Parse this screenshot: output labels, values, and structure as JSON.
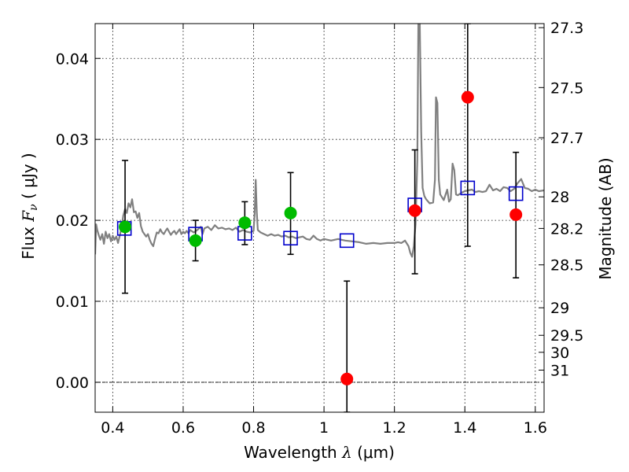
{
  "chart_data": {
    "type": "scatter",
    "xlabel": {
      "pre": "Wavelength  ",
      "sym": "λ",
      "post": " (μm)"
    },
    "ylabel": {
      "pre": "Flux  ",
      "sym": "F",
      "sub": "ν",
      "post": "  ( μJy )"
    },
    "y2label": "Magnitude (AB)",
    "xlim": [
      0.35,
      1.625
    ],
    "ylim": [
      -0.0037,
      0.0443
    ],
    "xticks": [
      {
        "v": 0.4,
        "label": "0.4"
      },
      {
        "v": 0.6,
        "label": "0.6"
      },
      {
        "v": 0.8,
        "label": "0.8"
      },
      {
        "v": 1.0,
        "label": "1"
      },
      {
        "v": 1.2,
        "label": "1.2"
      },
      {
        "v": 1.4,
        "label": "1.4"
      },
      {
        "v": 1.6,
        "label": "1.6"
      }
    ],
    "yticks": [
      {
        "v": 0.0,
        "label": "0.00"
      },
      {
        "v": 0.01,
        "label": "0.01"
      },
      {
        "v": 0.02,
        "label": "0.02"
      },
      {
        "v": 0.03,
        "label": "0.03"
      },
      {
        "v": 0.04,
        "label": "0.04"
      }
    ],
    "mag_ticks": [
      {
        "v": 0.0438,
        "label": "27.3"
      },
      {
        "v": 0.0364,
        "label": "27.5"
      },
      {
        "v": 0.0302,
        "label": "27.7"
      },
      {
        "v": 0.0229,
        "label": "28"
      },
      {
        "v": 0.019,
        "label": "28.2"
      },
      {
        "v": 0.0145,
        "label": "28.5"
      },
      {
        "v": 0.0092,
        "label": "29"
      },
      {
        "v": 0.0058,
        "label": "29.5"
      },
      {
        "v": 0.0037,
        "label": "30"
      },
      {
        "v": 0.0015,
        "label": "31"
      }
    ],
    "grid": true,
    "zero_line": 0.0,
    "series": [
      {
        "kind": "spectrum",
        "color": "#808080",
        "points": [
          [
            0.35,
            0.0158
          ],
          [
            0.353,
            0.0195
          ],
          [
            0.356,
            0.0188
          ],
          [
            0.36,
            0.0182
          ],
          [
            0.365,
            0.0176
          ],
          [
            0.37,
            0.0183
          ],
          [
            0.375,
            0.0171
          ],
          [
            0.38,
            0.0186
          ],
          [
            0.385,
            0.0178
          ],
          [
            0.39,
            0.0183
          ],
          [
            0.395,
            0.0174
          ],
          [
            0.4,
            0.0181
          ],
          [
            0.405,
            0.0176
          ],
          [
            0.41,
            0.018
          ],
          [
            0.415,
            0.0172
          ],
          [
            0.42,
            0.0181
          ],
          [
            0.425,
            0.0191
          ],
          [
            0.43,
            0.0206
          ],
          [
            0.435,
            0.0214
          ],
          [
            0.44,
            0.0209
          ],
          [
            0.445,
            0.0221
          ],
          [
            0.45,
            0.0216
          ],
          [
            0.455,
            0.0226
          ],
          [
            0.46,
            0.021
          ],
          [
            0.465,
            0.0211
          ],
          [
            0.47,
            0.0203
          ],
          [
            0.475,
            0.0209
          ],
          [
            0.48,
            0.0193
          ],
          [
            0.485,
            0.0186
          ],
          [
            0.49,
            0.0183
          ],
          [
            0.495,
            0.018
          ],
          [
            0.5,
            0.0183
          ],
          [
            0.505,
            0.0176
          ],
          [
            0.51,
            0.0171
          ],
          [
            0.515,
            0.0168
          ],
          [
            0.52,
            0.0177
          ],
          [
            0.525,
            0.0185
          ],
          [
            0.53,
            0.0184
          ],
          [
            0.535,
            0.0189
          ],
          [
            0.54,
            0.0185
          ],
          [
            0.545,
            0.0183
          ],
          [
            0.55,
            0.0187
          ],
          [
            0.555,
            0.019
          ],
          [
            0.56,
            0.0186
          ],
          [
            0.565,
            0.0182
          ],
          [
            0.57,
            0.0185
          ],
          [
            0.575,
            0.0187
          ],
          [
            0.58,
            0.0183
          ],
          [
            0.585,
            0.0186
          ],
          [
            0.59,
            0.0189
          ],
          [
            0.595,
            0.0183
          ],
          [
            0.6,
            0.0186
          ],
          [
            0.605,
            0.0184
          ],
          [
            0.61,
            0.0187
          ],
          [
            0.615,
            0.0184
          ],
          [
            0.62,
            0.0188
          ],
          [
            0.63,
            0.0185
          ],
          [
            0.64,
            0.0188
          ],
          [
            0.65,
            0.0192
          ],
          [
            0.655,
            0.0183
          ],
          [
            0.66,
            0.019
          ],
          [
            0.67,
            0.0192
          ],
          [
            0.68,
            0.0188
          ],
          [
            0.69,
            0.0194
          ],
          [
            0.7,
            0.019
          ],
          [
            0.71,
            0.0191
          ],
          [
            0.72,
            0.0189
          ],
          [
            0.73,
            0.019
          ],
          [
            0.74,
            0.0188
          ],
          [
            0.75,
            0.0191
          ],
          [
            0.76,
            0.0186
          ],
          [
            0.77,
            0.0188
          ],
          [
            0.78,
            0.0186
          ],
          [
            0.79,
            0.0185
          ],
          [
            0.8,
            0.0187
          ],
          [
            0.803,
            0.0208
          ],
          [
            0.806,
            0.025
          ],
          [
            0.809,
            0.021
          ],
          [
            0.812,
            0.0188
          ],
          [
            0.82,
            0.0185
          ],
          [
            0.83,
            0.0183
          ],
          [
            0.84,
            0.0181
          ],
          [
            0.85,
            0.0183
          ],
          [
            0.86,
            0.0181
          ],
          [
            0.87,
            0.0182
          ],
          [
            0.88,
            0.018
          ],
          [
            0.89,
            0.0181
          ],
          [
            0.9,
            0.0179
          ],
          [
            0.91,
            0.018
          ],
          [
            0.92,
            0.0178
          ],
          [
            0.93,
            0.0179
          ],
          [
            0.94,
            0.018
          ],
          [
            0.95,
            0.0177
          ],
          [
            0.96,
            0.0176
          ],
          [
            0.97,
            0.0181
          ],
          [
            0.98,
            0.0177
          ],
          [
            0.99,
            0.0175
          ],
          [
            1.0,
            0.0177
          ],
          [
            1.02,
            0.0175
          ],
          [
            1.04,
            0.0177
          ],
          [
            1.06,
            0.0175
          ],
          [
            1.08,
            0.0174
          ],
          [
            1.1,
            0.0173
          ],
          [
            1.12,
            0.0171
          ],
          [
            1.14,
            0.0172
          ],
          [
            1.16,
            0.0171
          ],
          [
            1.18,
            0.0172
          ],
          [
            1.2,
            0.0172
          ],
          [
            1.21,
            0.0173
          ],
          [
            1.22,
            0.0172
          ],
          [
            1.23,
            0.0175
          ],
          [
            1.24,
            0.0168
          ],
          [
            1.245,
            0.016
          ],
          [
            1.25,
            0.0155
          ],
          [
            1.255,
            0.0168
          ],
          [
            1.26,
            0.0195
          ],
          [
            1.265,
            0.0275
          ],
          [
            1.268,
            0.0443
          ],
          [
            1.272,
            0.0443
          ],
          [
            1.276,
            0.031
          ],
          [
            1.28,
            0.024
          ],
          [
            1.285,
            0.023
          ],
          [
            1.29,
            0.0226
          ],
          [
            1.3,
            0.0221
          ],
          [
            1.31,
            0.0222
          ],
          [
            1.315,
            0.025
          ],
          [
            1.318,
            0.0352
          ],
          [
            1.322,
            0.0345
          ],
          [
            1.326,
            0.025
          ],
          [
            1.33,
            0.0232
          ],
          [
            1.34,
            0.0225
          ],
          [
            1.35,
            0.0238
          ],
          [
            1.355,
            0.0223
          ],
          [
            1.36,
            0.0226
          ],
          [
            1.365,
            0.027
          ],
          [
            1.37,
            0.0262
          ],
          [
            1.375,
            0.0232
          ],
          [
            1.38,
            0.0231
          ],
          [
            1.39,
            0.0234
          ],
          [
            1.4,
            0.0236
          ],
          [
            1.41,
            0.0237
          ],
          [
            1.42,
            0.0238
          ],
          [
            1.43,
            0.0235
          ],
          [
            1.44,
            0.0236
          ],
          [
            1.45,
            0.0235
          ],
          [
            1.46,
            0.0236
          ],
          [
            1.47,
            0.0244
          ],
          [
            1.48,
            0.0237
          ],
          [
            1.49,
            0.0239
          ],
          [
            1.5,
            0.0236
          ],
          [
            1.51,
            0.0241
          ],
          [
            1.52,
            0.024
          ],
          [
            1.53,
            0.0236
          ],
          [
            1.54,
            0.0239
          ],
          [
            1.55,
            0.0246
          ],
          [
            1.56,
            0.0251
          ],
          [
            1.57,
            0.024
          ],
          [
            1.58,
            0.0239
          ],
          [
            1.59,
            0.0236
          ],
          [
            1.6,
            0.0238
          ],
          [
            1.61,
            0.0236
          ],
          [
            1.625,
            0.0237
          ]
        ]
      },
      {
        "kind": "model-squares",
        "color": "#0000cc",
        "points": [
          [
            0.433,
            0.019
          ],
          [
            0.635,
            0.0183
          ],
          [
            0.775,
            0.0184
          ],
          [
            0.905,
            0.0178
          ],
          [
            1.065,
            0.0175
          ],
          [
            1.258,
            0.0219
          ],
          [
            1.408,
            0.024
          ],
          [
            1.545,
            0.0233
          ]
        ]
      },
      {
        "kind": "green-points",
        "color": "#00bb00",
        "points": [
          {
            "x": 0.435,
            "y": 0.0192,
            "lo": 0.011,
            "hi": 0.0274
          },
          {
            "x": 0.635,
            "y": 0.0175,
            "lo": 0.015,
            "hi": 0.02
          },
          {
            "x": 0.775,
            "y": 0.0197,
            "lo": 0.017,
            "hi": 0.0223
          },
          {
            "x": 0.905,
            "y": 0.0209,
            "lo": 0.0158,
            "hi": 0.0259
          }
        ]
      },
      {
        "kind": "red-points",
        "color": "#ff0000",
        "points": [
          {
            "x": 1.065,
            "y": 0.0004,
            "lo": -0.0037,
            "hi": 0.0125
          },
          {
            "x": 1.258,
            "y": 0.0212,
            "lo": 0.0134,
            "hi": 0.0287
          },
          {
            "x": 1.408,
            "y": 0.0352,
            "lo": 0.0168,
            "hi": 0.0443
          },
          {
            "x": 1.545,
            "y": 0.0207,
            "lo": 0.0129,
            "hi": 0.0284
          }
        ]
      }
    ]
  }
}
